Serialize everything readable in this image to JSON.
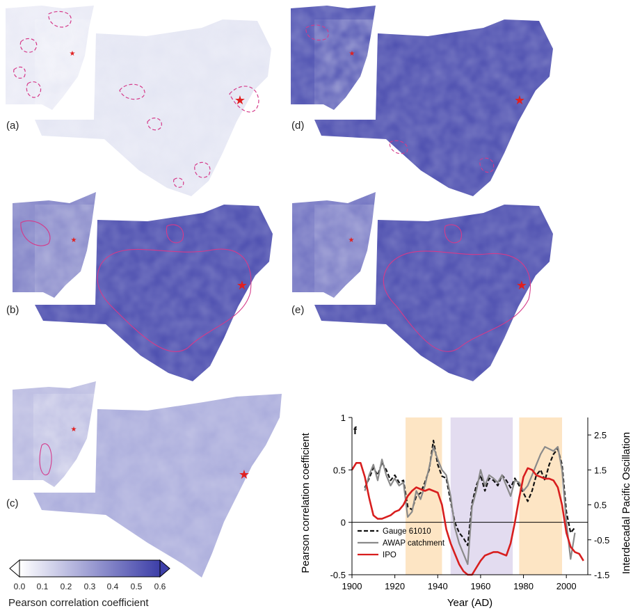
{
  "maps": {
    "panels": [
      {
        "label": "(a)",
        "intensity": 0.15
      },
      {
        "label": "(b)",
        "intensity": 0.6
      },
      {
        "label": "(c)",
        "intensity": 0.3
      },
      {
        "label": "(d)",
        "intensity": 0.7
      },
      {
        "label": "(e)",
        "intensity": 0.6
      }
    ]
  },
  "colorbar": {
    "ticks": [
      "0.0",
      "0.1",
      "0.2",
      "0.3",
      "0.4",
      "0.5",
      "0.6"
    ],
    "label": "Pearson correlation coefficient",
    "colors": {
      "low": "#ffffff",
      "high": "#3d3fa8"
    }
  },
  "chart_data": {
    "type": "line",
    "panel_label": "f",
    "xlabel": "Year (AD)",
    "ylabel_left": "Pearson correlation coefficient",
    "ylabel_right": "Interdecadal Pacific Oscillation",
    "xlim": [
      1900,
      2010
    ],
    "ylim_left": [
      -0.5,
      1
    ],
    "ylim_right": [
      -1.5,
      3
    ],
    "x_ticks": [
      "1900",
      "1920",
      "1940",
      "1960",
      "1980",
      "2000"
    ],
    "y_ticks_left": [
      "-0.5",
      "0",
      "0.5",
      "1"
    ],
    "y_ticks_right": [
      "-1.5",
      "-0.5",
      "0.5",
      "1.5",
      "2.5"
    ],
    "shaded_periods": [
      {
        "start": 1925,
        "end": 1942,
        "color": "#fde5c4"
      },
      {
        "start": 1946,
        "end": 1975,
        "color": "#e3dcf0"
      },
      {
        "start": 1978,
        "end": 1998,
        "color": "#fde5c4"
      }
    ],
    "series": [
      {
        "name": "Gauge 61010",
        "axis": "left",
        "color": "#111111",
        "style": "dashed",
        "x": [
          1906,
          1908,
          1910,
          1912,
          1914,
          1916,
          1918,
          1920,
          1922,
          1924,
          1926,
          1928,
          1930,
          1932,
          1934,
          1936,
          1938,
          1940,
          1942,
          1944,
          1946,
          1948,
          1950,
          1952,
          1954,
          1956,
          1958,
          1960,
          1962,
          1964,
          1966,
          1968,
          1970,
          1972,
          1974,
          1976,
          1978,
          1980,
          1982,
          1984,
          1986,
          1988,
          1990,
          1992,
          1994,
          1996,
          1998,
          2000,
          2002,
          2004
        ],
        "y": [
          0.33,
          0.42,
          0.52,
          0.45,
          0.57,
          0.5,
          0.4,
          0.45,
          0.38,
          0.4,
          0.15,
          0.12,
          0.25,
          0.28,
          0.38,
          0.5,
          0.78,
          0.55,
          0.44,
          0.42,
          0.2,
          0.0,
          -0.1,
          -0.15,
          -0.22,
          0.18,
          0.35,
          0.45,
          0.3,
          0.42,
          0.4,
          0.35,
          0.45,
          0.4,
          0.33,
          0.42,
          0.35,
          0.28,
          0.2,
          0.3,
          0.45,
          0.5,
          0.4,
          0.55,
          0.65,
          0.7,
          0.55,
          0.1,
          -0.1,
          -0.05
        ]
      },
      {
        "name": "AWAP catchment",
        "axis": "left",
        "color": "#8a8a8a",
        "style": "solid",
        "x": [
          1906,
          1908,
          1910,
          1912,
          1914,
          1916,
          1918,
          1920,
          1922,
          1924,
          1926,
          1928,
          1930,
          1932,
          1934,
          1936,
          1938,
          1940,
          1942,
          1944,
          1946,
          1948,
          1950,
          1952,
          1954,
          1956,
          1958,
          1960,
          1962,
          1964,
          1966,
          1968,
          1970,
          1972,
          1974,
          1976,
          1978,
          1980,
          1982,
          1984,
          1986,
          1988,
          1990,
          1992,
          1994,
          1996,
          1998,
          2000,
          2002,
          2004
        ],
        "y": [
          0.3,
          0.45,
          0.55,
          0.4,
          0.6,
          0.45,
          0.35,
          0.42,
          0.35,
          0.38,
          0.05,
          0.1,
          0.3,
          0.22,
          0.35,
          0.52,
          0.72,
          0.6,
          0.5,
          0.45,
          0.25,
          -0.05,
          -0.2,
          -0.3,
          -0.4,
          0.15,
          0.3,
          0.5,
          0.35,
          0.45,
          0.42,
          0.38,
          0.45,
          0.35,
          0.25,
          0.4,
          0.38,
          0.3,
          0.35,
          0.45,
          0.55,
          0.65,
          0.72,
          0.7,
          0.68,
          0.72,
          0.5,
          0.0,
          -0.35,
          -0.1
        ]
      },
      {
        "name": "IPO",
        "axis": "right",
        "color": "#d81e1e",
        "style": "solid",
        "x": [
          1900,
          1902,
          1904,
          1906,
          1908,
          1910,
          1912,
          1914,
          1916,
          1918,
          1920,
          1922,
          1924,
          1926,
          1928,
          1930,
          1932,
          1934,
          1936,
          1938,
          1940,
          1942,
          1944,
          1946,
          1948,
          1950,
          1952,
          1954,
          1956,
          1958,
          1960,
          1962,
          1964,
          1966,
          1968,
          1970,
          1972,
          1974,
          1976,
          1978,
          1980,
          1982,
          1984,
          1986,
          1988,
          1990,
          1992,
          1994,
          1996,
          1998,
          2000,
          2002,
          2004,
          2006,
          2008
        ],
        "y": [
          1.5,
          1.7,
          1.7,
          1.3,
          0.7,
          0.2,
          0.1,
          0.1,
          0.15,
          0.2,
          0.3,
          0.35,
          0.5,
          0.75,
          0.9,
          1.0,
          0.95,
          0.9,
          0.95,
          0.9,
          0.85,
          0.5,
          -0.2,
          -0.6,
          -0.9,
          -1.2,
          -1.4,
          -1.5,
          -1.5,
          -1.3,
          -1.1,
          -0.95,
          -0.9,
          -0.85,
          -0.85,
          -0.9,
          -0.95,
          -0.6,
          0.0,
          0.7,
          1.3,
          1.55,
          1.5,
          1.35,
          1.3,
          1.25,
          1.25,
          1.2,
          1.0,
          0.5,
          -0.3,
          -0.7,
          -0.85,
          -0.9,
          -1.1
        ]
      }
    ],
    "legend_position": "lower-left"
  }
}
